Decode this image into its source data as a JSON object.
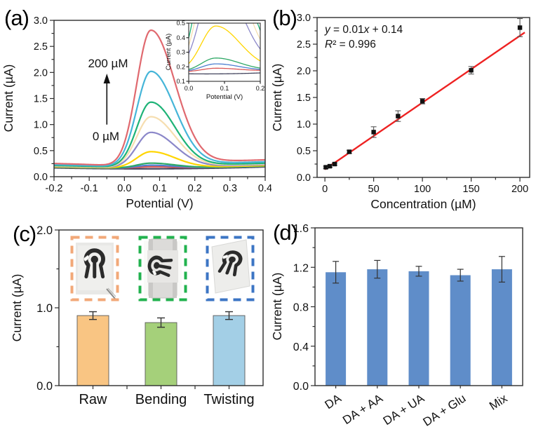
{
  "chart_data": [
    {
      "panel_label": "(a)",
      "type": "line",
      "xlabel": "Potential (V)",
      "ylabel": "Current (µA)",
      "xlim": [
        -0.2,
        0.4
      ],
      "ylim": [
        0,
        3
      ],
      "xtick_step": 0.1,
      "ytick_step": 0.5,
      "annotation_arrow": {
        "top_label": "200 µM",
        "bottom_label": "0 µM"
      },
      "peak_center_V": 0.075,
      "baseline_uA": 0.163,
      "series": [
        {
          "concentration_uM": 200,
          "peak_current_uA": 2.81,
          "color": "#e0696f"
        },
        {
          "concentration_uM": 150,
          "peak_current_uA": 2.02,
          "color": "#45b5d8"
        },
        {
          "concentration_uM": 100,
          "peak_current_uA": 1.43,
          "color": "#1eb377"
        },
        {
          "concentration_uM": 75,
          "peak_current_uA": 1.15,
          "color": "#f6deb0"
        },
        {
          "concentration_uM": 50,
          "peak_current_uA": 0.85,
          "color": "#8b87c9"
        },
        {
          "concentration_uM": 25,
          "peak_current_uA": 0.48,
          "color": "#ffd500"
        },
        {
          "concentration_uM": 10,
          "peak_current_uA": 0.26,
          "color": "#2fa866"
        },
        {
          "concentration_uM": 5,
          "peak_current_uA": 0.22,
          "color": "#4d7fd0"
        },
        {
          "concentration_uM": 1,
          "peak_current_uA": 0.19,
          "color": "#d95757"
        },
        {
          "concentration_uM": 0,
          "peak_current_uA": 0.165,
          "color": "#44455e"
        }
      ],
      "inset": {
        "xlabel": "Potential (V)",
        "ylabel": "Current (µA)",
        "xlim": [
          0,
          0.2
        ],
        "ylim": [
          0.1,
          0.5
        ],
        "xticks": [
          0,
          0.1,
          0.2
        ],
        "yticks": [
          0.1,
          0.2,
          0.3,
          0.4,
          0.5
        ]
      }
    },
    {
      "panel_label": "(b)",
      "type": "scatter",
      "xlabel": "Concentration (µM)",
      "ylabel": "Current (µA)",
      "xlim": [
        -8,
        210
      ],
      "ylim": [
        0,
        3
      ],
      "xticks": [
        0,
        50,
        100,
        150,
        200
      ],
      "xminors": [
        25,
        75,
        125,
        175
      ],
      "ytick_step": 0.5,
      "equation_line1": [
        [
          "y",
          true
        ],
        [
          " = 0.01",
          false
        ],
        [
          "x",
          true
        ],
        [
          " + 0.14",
          false
        ]
      ],
      "equation_line2": [
        [
          "R",
          true
        ],
        [
          "² = 0.996",
          false
        ]
      ],
      "points": {
        "x": [
          1,
          5,
          10,
          25,
          50,
          75,
          100,
          150,
          200
        ],
        "y": [
          0.19,
          0.21,
          0.25,
          0.48,
          0.85,
          1.15,
          1.43,
          2.01,
          2.81
        ],
        "yerr": [
          0.02,
          0.02,
          0.02,
          0.03,
          0.1,
          0.1,
          0.05,
          0.07,
          0.17
        ]
      },
      "fit_line": {
        "x_start": 0,
        "x_end": 205,
        "y_start": 0.15,
        "y_end": 2.72,
        "color": "#ee2222"
      },
      "marker_color": "#111111"
    },
    {
      "panel_label": "(c)",
      "type": "bar",
      "ylabel": "Current (µA)",
      "ylim": [
        0,
        2
      ],
      "yticks": [
        0,
        1,
        2
      ],
      "categories": [
        "Raw",
        "Bending",
        "Twisting"
      ],
      "values": [
        0.9,
        0.81,
        0.9
      ],
      "errors": [
        0.05,
        0.06,
        0.05
      ],
      "bar_colors": [
        "#f9c583",
        "#a5d07a",
        "#a3cfe6"
      ],
      "photo_border_colors": [
        "#f2a878",
        "#21b24e",
        "#3c75c4"
      ],
      "photo_names": [
        "raw-electrode-photo",
        "bending-electrode-photo",
        "twisting-electrode-photo"
      ]
    },
    {
      "panel_label": "(d)",
      "type": "bar",
      "ylabel": "Current (µA)",
      "ylim": [
        0,
        1.6
      ],
      "yticks": [
        0,
        0.4,
        0.8,
        1.2,
        1.6
      ],
      "categories": [
        "DA",
        "DA + AA",
        "DA + UA",
        "DA + Glu",
        "Mix"
      ],
      "values": [
        1.15,
        1.18,
        1.16,
        1.12,
        1.18
      ],
      "errors": [
        0.11,
        0.09,
        0.05,
        0.06,
        0.13
      ],
      "bar_color": "#5f8dc9"
    }
  ]
}
